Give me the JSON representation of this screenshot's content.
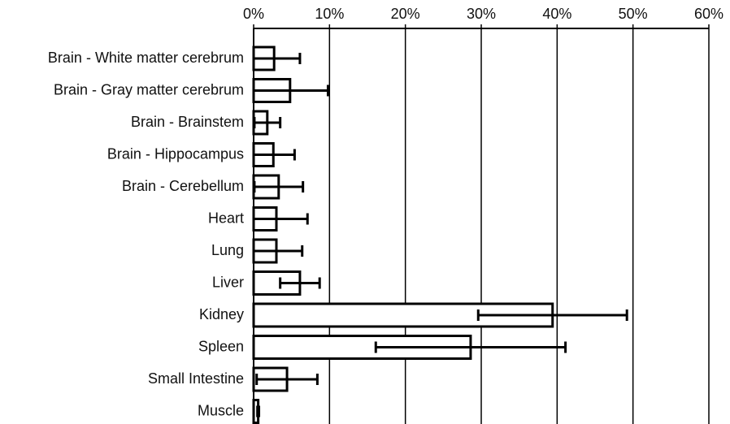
{
  "chart_data": {
    "type": "bar",
    "orientation": "horizontal",
    "categories": [
      "Brain - White matter cerebrum",
      "Brain - Gray matter cerebrum",
      "Brain - Brainstem",
      "Brain - Hippocampus",
      "Brain - Cerebellum",
      "Heart",
      "Lung",
      "Liver",
      "Kidney",
      "Spleen",
      "Small Intestine",
      "Muscle"
    ],
    "values": [
      2.7,
      4.8,
      1.8,
      2.6,
      3.3,
      3.0,
      3.0,
      6.1,
      39.4,
      28.6,
      4.4,
      0.6
    ],
    "errors": [
      3.4,
      5.0,
      1.7,
      2.8,
      3.2,
      4.1,
      3.4,
      2.6,
      9.8,
      12.5,
      4.0,
      0.1
    ],
    "color": "#ffffff",
    "edge_color": "#000000",
    "xlim": [
      0,
      60
    ],
    "xticks": [
      {
        "value": 0,
        "label": "0%"
      },
      {
        "value": 10,
        "label": "10%"
      },
      {
        "value": 20,
        "label": "20%"
      },
      {
        "value": 30,
        "label": "30%"
      },
      {
        "value": 40,
        "label": "40%"
      },
      {
        "value": 50,
        "label": "50%"
      },
      {
        "value": 60,
        "label": "60%"
      }
    ],
    "grid": true
  }
}
